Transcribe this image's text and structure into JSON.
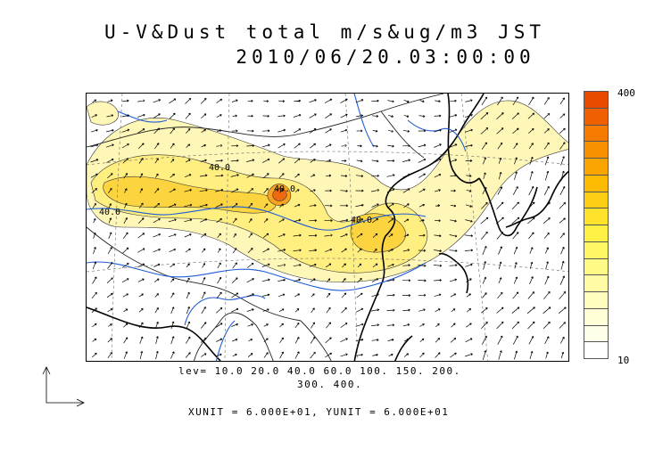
{
  "title": {
    "line1": "U-V&Dust total m/s&ug/m3 JST",
    "line2": "2010/06/20.03:00:00"
  },
  "contour_labels": [
    "40.0",
    "40.0",
    "40.0",
    "40.0"
  ],
  "levels_line1": "lev= 10.0 20.0 40.0 60.0 100. 150. 200.",
  "levels_line2": "300. 400.",
  "unit_text": "XUNIT = 6.000E+01, YUNIT = 6.000E+01",
  "colorbar": {
    "max_label": "400",
    "min_label": "10",
    "colors": [
      "#e84a00",
      "#f16000",
      "#f57a00",
      "#f89100",
      "#fba600",
      "#fcbb00",
      "#fdcf14",
      "#fee22c",
      "#fff046",
      "#fff766",
      "#fffa86",
      "#fffca5",
      "#fffdc0",
      "#fffed6",
      "#fffee8",
      "#ffffff"
    ]
  },
  "dust_colors": {
    "light": "#fff7b8",
    "mid": "#ffee80",
    "high": "#fbd440",
    "peak": "#f7a520",
    "max": "#ee6a10"
  },
  "wind_field": {
    "cols": 31,
    "rows": 18
  }
}
